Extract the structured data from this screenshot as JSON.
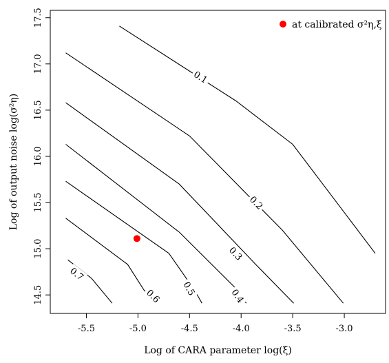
{
  "chart_data": {
    "type": "contour",
    "xlabel": "Log of CARA parameter log(ξ)",
    "ylabel": "Log of output noise log(σ²η)",
    "xlim": [
      -5.85,
      -2.6
    ],
    "ylim": [
      14.3,
      17.58
    ],
    "x_ticks": [
      -5.5,
      -5.0,
      -4.5,
      -4.0,
      -3.5,
      -3.0
    ],
    "x_tick_labels": [
      "-5.5",
      "-5.0",
      "-4.5",
      "-4.0",
      "-3.5",
      "-3.0"
    ],
    "y_ticks": [
      14.5,
      15.0,
      15.5,
      16.0,
      16.5,
      17.0,
      17.5
    ],
    "y_tick_labels": [
      "14.5",
      "15.0",
      "15.5",
      "16.0",
      "16.5",
      "17.0",
      "17.5"
    ],
    "contours": [
      {
        "level": "0.1",
        "points": [
          [
            -5.18,
            17.41
          ],
          [
            -4.05,
            16.6
          ],
          [
            -3.5,
            16.13
          ],
          [
            -2.7,
            14.95
          ]
        ],
        "label_at": [
          -4.39,
          16.86
        ]
      },
      {
        "level": "0.2",
        "points": [
          [
            -5.7,
            17.12
          ],
          [
            -4.5,
            16.22
          ],
          [
            -3.6,
            15.2
          ],
          [
            -3.01,
            14.41
          ]
        ],
        "label_at": [
          -3.85,
          15.5
        ]
      },
      {
        "level": "0.3",
        "points": [
          [
            -5.7,
            16.58
          ],
          [
            -4.6,
            15.7
          ],
          [
            -3.85,
            14.82
          ],
          [
            -3.49,
            14.41
          ]
        ],
        "label_at": [
          -4.05,
          14.95
        ]
      },
      {
        "level": "0.4",
        "points": [
          [
            -5.7,
            16.13
          ],
          [
            -4.6,
            15.18
          ],
          [
            -4.05,
            14.57
          ],
          [
            -3.95,
            14.41
          ]
        ],
        "label_at": [
          -4.03,
          14.49
        ]
      },
      {
        "level": "0.5",
        "points": [
          [
            -5.7,
            15.73
          ],
          [
            -4.7,
            14.95
          ],
          [
            -4.45,
            14.55
          ],
          [
            -4.38,
            14.41
          ]
        ],
        "label_at": [
          -4.5,
          14.57
        ]
      },
      {
        "level": "0.6",
        "points": [
          [
            -5.7,
            15.33
          ],
          [
            -5.1,
            14.83
          ],
          [
            -4.94,
            14.55
          ],
          [
            -4.85,
            14.45
          ]
        ],
        "label_at": [
          -4.85,
          14.49
        ]
      },
      {
        "level": "0.7",
        "points": [
          [
            -5.68,
            14.88
          ],
          [
            -5.45,
            14.68
          ],
          [
            -5.25,
            14.41
          ]
        ],
        "label_at": [
          -5.59,
          14.73
        ]
      }
    ],
    "points": [
      {
        "name": "at calibrated σ²η,ξ",
        "x": -5.01,
        "y": 15.11,
        "color": "#ff0000"
      }
    ],
    "legend": {
      "position": "top-right",
      "entries": [
        {
          "label": "at calibrated σ²η,ξ",
          "marker": "filled-circle",
          "color": "#ff0000"
        }
      ]
    },
    "grid": false
  }
}
